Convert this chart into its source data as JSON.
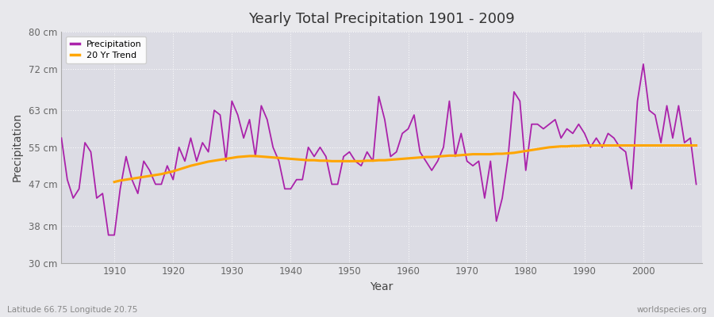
{
  "title": "Yearly Total Precipitation 1901 - 2009",
  "xlabel": "Year",
  "ylabel": "Precipitation",
  "lat_lon_label": "Latitude 66.75 Longitude 20.75",
  "watermark": "worldspecies.org",
  "precip_color": "#aa22aa",
  "trend_color": "#FFA500",
  "background_color": "#e8e8ec",
  "plot_bg_color": "#dcdce4",
  "yticks": [
    30,
    38,
    47,
    55,
    63,
    72,
    80
  ],
  "ytick_labels": [
    "30 cm",
    "38 cm",
    "47 cm",
    "55 cm",
    "63 cm",
    "72 cm",
    "80 cm"
  ],
  "years": [
    1901,
    1902,
    1903,
    1904,
    1905,
    1906,
    1907,
    1908,
    1909,
    1910,
    1911,
    1912,
    1913,
    1914,
    1915,
    1916,
    1917,
    1918,
    1919,
    1920,
    1921,
    1922,
    1923,
    1924,
    1925,
    1926,
    1927,
    1928,
    1929,
    1930,
    1931,
    1932,
    1933,
    1934,
    1935,
    1936,
    1937,
    1938,
    1939,
    1940,
    1941,
    1942,
    1943,
    1944,
    1945,
    1946,
    1947,
    1948,
    1949,
    1950,
    1951,
    1952,
    1953,
    1954,
    1955,
    1956,
    1957,
    1958,
    1959,
    1960,
    1961,
    1962,
    1963,
    1964,
    1965,
    1966,
    1967,
    1968,
    1969,
    1970,
    1971,
    1972,
    1973,
    1974,
    1975,
    1976,
    1977,
    1978,
    1979,
    1980,
    1981,
    1982,
    1983,
    1984,
    1985,
    1986,
    1987,
    1988,
    1989,
    1990,
    1991,
    1992,
    1993,
    1994,
    1995,
    1996,
    1997,
    1998,
    1999,
    2000,
    2001,
    2002,
    2003,
    2004,
    2005,
    2006,
    2007,
    2008,
    2009
  ],
  "precip": [
    57,
    48,
    44,
    46,
    56,
    54,
    44,
    45,
    36,
    36,
    46,
    53,
    48,
    45,
    52,
    50,
    47,
    47,
    51,
    48,
    55,
    52,
    57,
    52,
    56,
    54,
    63,
    62,
    52,
    65,
    62,
    57,
    61,
    53,
    64,
    61,
    55,
    52,
    46,
    46,
    48,
    48,
    55,
    53,
    55,
    53,
    47,
    47,
    53,
    54,
    52,
    51,
    54,
    52,
    66,
    61,
    53,
    54,
    58,
    59,
    62,
    54,
    52,
    50,
    52,
    55,
    65,
    53,
    58,
    52,
    51,
    52,
    44,
    52,
    39,
    44,
    53,
    67,
    65,
    50,
    60,
    60,
    59,
    60,
    61,
    57,
    59,
    58,
    60,
    58,
    55,
    57,
    55,
    58,
    57,
    55,
    54,
    46,
    65,
    73,
    63,
    62,
    56,
    64,
    57,
    64,
    56,
    57,
    47
  ],
  "trend": [
    null,
    null,
    null,
    null,
    null,
    null,
    null,
    null,
    null,
    47.5,
    47.8,
    48.0,
    48.2,
    48.4,
    48.6,
    48.8,
    49.0,
    49.2,
    49.5,
    49.8,
    50.2,
    50.6,
    51.0,
    51.3,
    51.6,
    51.9,
    52.1,
    52.3,
    52.5,
    52.7,
    52.9,
    53.0,
    53.1,
    53.1,
    53.0,
    52.9,
    52.8,
    52.7,
    52.6,
    52.5,
    52.4,
    52.3,
    52.2,
    52.2,
    52.1,
    52.1,
    52.0,
    52.0,
    52.0,
    52.0,
    52.0,
    52.0,
    52.1,
    52.1,
    52.2,
    52.2,
    52.3,
    52.4,
    52.5,
    52.6,
    52.7,
    52.8,
    52.9,
    52.9,
    53.0,
    53.1,
    53.2,
    53.2,
    53.3,
    53.4,
    53.5,
    53.5,
    53.5,
    53.5,
    53.6,
    53.6,
    53.7,
    53.8,
    54.0,
    54.2,
    54.4,
    54.6,
    54.8,
    55.0,
    55.1,
    55.2,
    55.2,
    55.3,
    55.3,
    55.4,
    55.4,
    55.4,
    55.4,
    55.4,
    55.4,
    55.4,
    55.4,
    55.4,
    55.4,
    55.4,
    55.4,
    55.4,
    55.4,
    55.4,
    55.4,
    55.4,
    55.4,
    55.4,
    55.4
  ]
}
